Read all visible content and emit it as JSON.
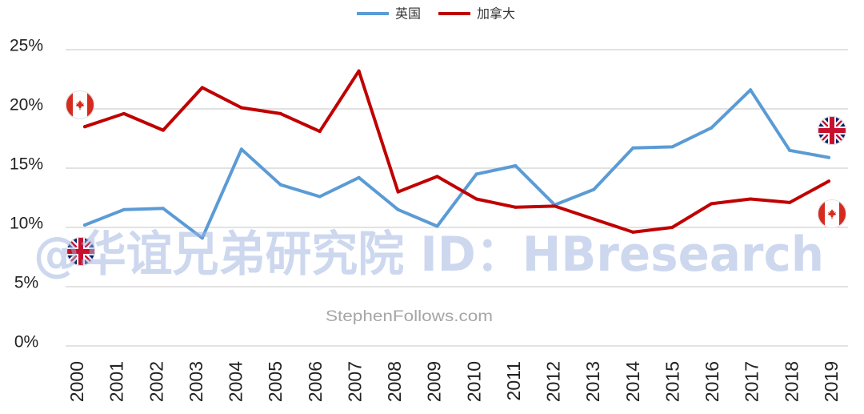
{
  "watermarks": {
    "main": "@华谊兄弟研究院 ID：HBresearch",
    "source": "StephenFollows.com"
  },
  "icons": {
    "canada": "canada-flag-icon",
    "uk": "uk-flag-icon"
  },
  "chart_data": {
    "type": "line",
    "legend": "top-center",
    "grid": true,
    "x": [
      "2000",
      "2001",
      "2002",
      "2003",
      "2004",
      "2005",
      "2006",
      "2007",
      "2008",
      "2009",
      "2010",
      "2011",
      "2012",
      "2013",
      "2014",
      "2015",
      "2016",
      "2017",
      "2018",
      "2019"
    ],
    "ylim": [
      0,
      25
    ],
    "y_tick_values": [
      0,
      5,
      10,
      15,
      20,
      25
    ],
    "y_tick_labels": [
      "0%",
      "5%",
      "10%",
      "15%",
      "20%",
      "25%"
    ],
    "series": [
      {
        "name": "英国",
        "color": "#5b9bd5",
        "values": [
          10.2,
          11.5,
          11.6,
          9.1,
          16.6,
          13.6,
          12.6,
          14.2,
          11.5,
          10.1,
          14.5,
          15.2,
          11.9,
          13.2,
          16.7,
          16.8,
          18.4,
          21.6,
          16.5,
          15.9
        ]
      },
      {
        "name": "加拿大",
        "color": "#c00000",
        "values": [
          18.5,
          19.6,
          18.2,
          21.8,
          20.1,
          19.6,
          18.1,
          23.2,
          13.0,
          14.3,
          12.4,
          11.7,
          11.8,
          10.7,
          9.6,
          10.0,
          12.0,
          12.4,
          12.1,
          13.9
        ]
      }
    ]
  }
}
